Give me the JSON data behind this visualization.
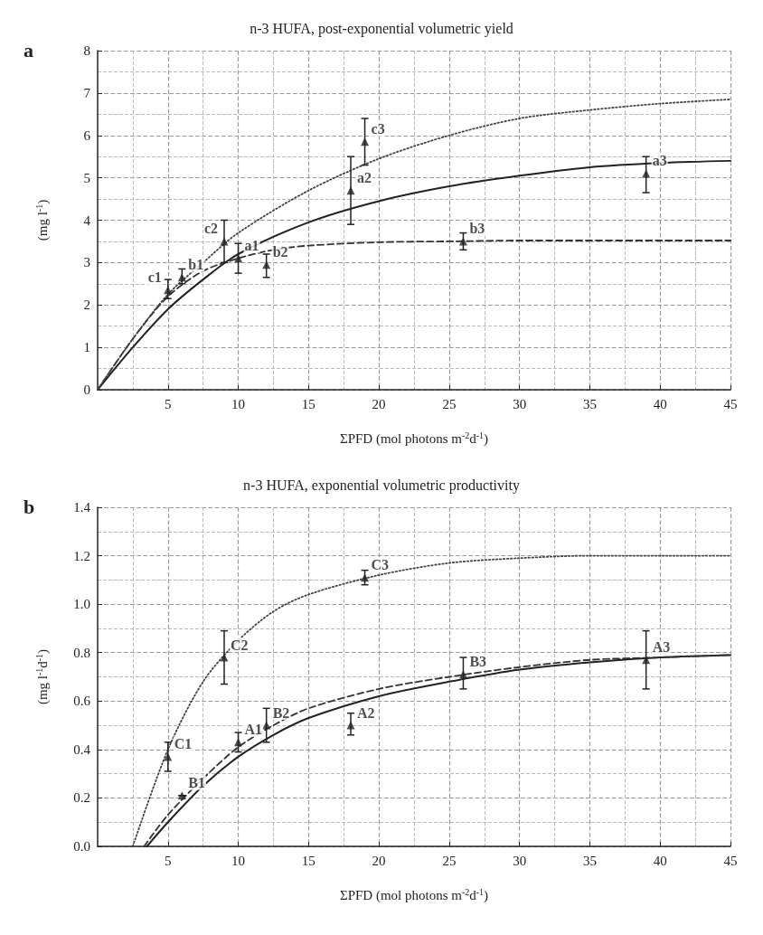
{
  "chart_data": [
    {
      "type": "scatter",
      "title": "n-3 HUFA, post-exponential volumetric yield",
      "xlabel": "ΣPFD (mol photons m$^{-2}$d$^{-1}$)",
      "ylabel": "(mg l$^{-1}$)",
      "xlim": [
        0,
        45
      ],
      "xticks": [
        5,
        10,
        15,
        20,
        25,
        30,
        35,
        40,
        45
      ],
      "ylim": [
        0,
        8
      ],
      "yticks": [
        0,
        1,
        2,
        3,
        4,
        5,
        6,
        7,
        8
      ],
      "grid": true,
      "series": [
        {
          "color": "#222222",
          "marker": "triangle",
          "x": [
            10,
            18,
            39
          ],
          "values": [
            3.1,
            4.7,
            5.1
          ],
          "errors": [
            [
              2.75,
              3.45
            ],
            [
              3.9,
              5.5
            ],
            [
              4.65,
              5.5
            ]
          ]
        },
        {
          "color": "#222222",
          "marker": "triangle",
          "x": [
            6,
            12,
            26
          ],
          "values": [
            2.65,
            2.95,
            3.5
          ],
          "errors": [
            [
              2.5,
              2.85
            ],
            [
              2.65,
              3.2
            ],
            [
              3.3,
              3.7
            ]
          ]
        },
        {
          "color": "#222222",
          "marker": "triangle",
          "x": [
            5,
            9,
            19
          ],
          "values": [
            2.35,
            3.5,
            5.85
          ],
          "errors": [
            [
              2.15,
              2.6
            ],
            [
              3.0,
              4.0
            ],
            [
              5.3,
              6.4
            ]
          ]
        },
        {
          "type": "line",
          "color": "#222222",
          "line_style": "solid",
          "x": [
            0,
            2.5,
            5,
            7.5,
            10,
            15,
            20,
            25,
            30,
            35,
            40,
            45
          ],
          "values": [
            0,
            1.0,
            1.9,
            2.6,
            3.2,
            3.95,
            4.45,
            4.8,
            5.05,
            5.25,
            5.35,
            5.4
          ]
        },
        {
          "type": "line",
          "color": "#333333",
          "line_style": "dashed",
          "x": [
            0,
            2.5,
            5,
            7.5,
            10,
            12.5,
            15,
            20,
            25,
            30,
            45
          ],
          "values": [
            0,
            1.2,
            2.2,
            2.8,
            3.1,
            3.3,
            3.4,
            3.48,
            3.5,
            3.52,
            3.52
          ]
        },
        {
          "type": "line",
          "color": "#444444",
          "line_style": "dotted",
          "x": [
            0,
            2.5,
            5,
            7.5,
            10,
            15,
            20,
            25,
            30,
            35,
            40,
            45
          ],
          "values": [
            0,
            1.2,
            2.25,
            3.0,
            3.7,
            4.7,
            5.45,
            6.0,
            6.4,
            6.6,
            6.75,
            6.85
          ]
        }
      ],
      "annotations": [
        "a",
        {
          "text": "a1",
          "x": 10,
          "y": 3.1
        },
        {
          "text": "a2",
          "x": 18,
          "y": 4.7
        },
        {
          "text": "a3",
          "x": 39,
          "y": 5.1
        },
        {
          "text": "b1",
          "x": 6,
          "y": 2.65
        },
        {
          "text": "b2",
          "x": 12,
          "y": 2.95
        },
        {
          "text": "b3",
          "x": 26,
          "y": 3.5
        },
        {
          "text": "c1",
          "x": 5,
          "y": 2.35
        },
        {
          "text": "c2",
          "x": 9,
          "y": 3.5
        },
        {
          "text": "c3",
          "x": 19,
          "y": 5.85
        }
      ]
    },
    {
      "type": "scatter",
      "title": "n-3 HUFA, exponential volumetric productivity",
      "xlabel": "ΣPFD (mol photons m$^{-2}$d$^{-1}$)",
      "ylabel": "(mg l$^{-1}$d$^{-1}$)",
      "xlim": [
        0,
        45
      ],
      "xticks": [
        5,
        10,
        15,
        20,
        25,
        30,
        35,
        40,
        45
      ],
      "ylim": [
        0,
        1.4
      ],
      "yticks": [
        {
          "value": 0,
          "label": "0.0"
        },
        0.2,
        0.4,
        0.6,
        0.8,
        {
          "value": 1,
          "label": "1.0"
        },
        1.2,
        1.4
      ],
      "grid": true,
      "series": [
        {
          "color": "#222222",
          "marker": "triangle",
          "x": [
            10,
            18,
            39
          ],
          "values": [
            0.43,
            0.5,
            0.77
          ],
          "errors": [
            [
              0.39,
              0.47
            ],
            [
              0.46,
              0.55
            ],
            [
              0.65,
              0.89
            ]
          ]
        },
        {
          "color": "#222222",
          "marker": "triangle",
          "x": [
            6,
            12,
            26
          ],
          "values": [
            0.21,
            0.5,
            0.71
          ],
          "errors": [
            null,
            [
              0.43,
              0.57
            ],
            [
              0.65,
              0.78
            ]
          ]
        },
        {
          "color": "#222222",
          "marker": "triangle",
          "x": [
            5,
            9,
            19
          ],
          "values": [
            0.37,
            0.78,
            1.11
          ],
          "errors": [
            [
              0.31,
              0.43
            ],
            [
              0.67,
              0.89
            ],
            [
              1.08,
              1.14
            ]
          ]
        },
        {
          "type": "line",
          "color": "#222222",
          "line_style": "solid",
          "x": [
            3.5,
            5,
            7.5,
            10,
            12.5,
            15,
            20,
            25,
            30,
            35,
            40,
            45
          ],
          "values": [
            0,
            0.1,
            0.25,
            0.37,
            0.46,
            0.53,
            0.62,
            0.68,
            0.73,
            0.76,
            0.78,
            0.79
          ]
        },
        {
          "type": "line",
          "color": "#333333",
          "line_style": "dashed",
          "x": [
            3.3,
            5,
            7.5,
            10,
            12.5,
            15,
            20,
            25,
            30,
            35,
            40,
            45
          ],
          "values": [
            0,
            0.13,
            0.28,
            0.41,
            0.5,
            0.57,
            0.65,
            0.7,
            0.74,
            0.77,
            0.78,
            0.79
          ]
        },
        {
          "type": "line",
          "color": "#444444",
          "line_style": "dotted",
          "x": [
            2.5,
            5,
            7.5,
            10,
            12.5,
            15,
            20,
            25,
            30,
            35,
            45
          ],
          "values": [
            0,
            0.4,
            0.68,
            0.85,
            0.97,
            1.04,
            1.12,
            1.17,
            1.19,
            1.2,
            1.2
          ]
        }
      ],
      "annotations": [
        "b",
        {
          "text": "A1",
          "x": 10,
          "y": 0.43
        },
        {
          "text": "A2",
          "x": 18,
          "y": 0.5
        },
        {
          "text": "A3",
          "x": 39,
          "y": 0.77
        },
        {
          "text": "B1",
          "x": 6,
          "y": 0.21
        },
        {
          "text": "B2",
          "x": 12,
          "y": 0.5
        },
        {
          "text": "B3",
          "x": 26,
          "y": 0.71
        },
        {
          "text": "C1",
          "x": 5,
          "y": 0.37
        },
        {
          "text": "C2",
          "x": 9,
          "y": 0.78
        },
        {
          "text": "C3",
          "x": 19,
          "y": 1.11
        }
      ]
    }
  ]
}
